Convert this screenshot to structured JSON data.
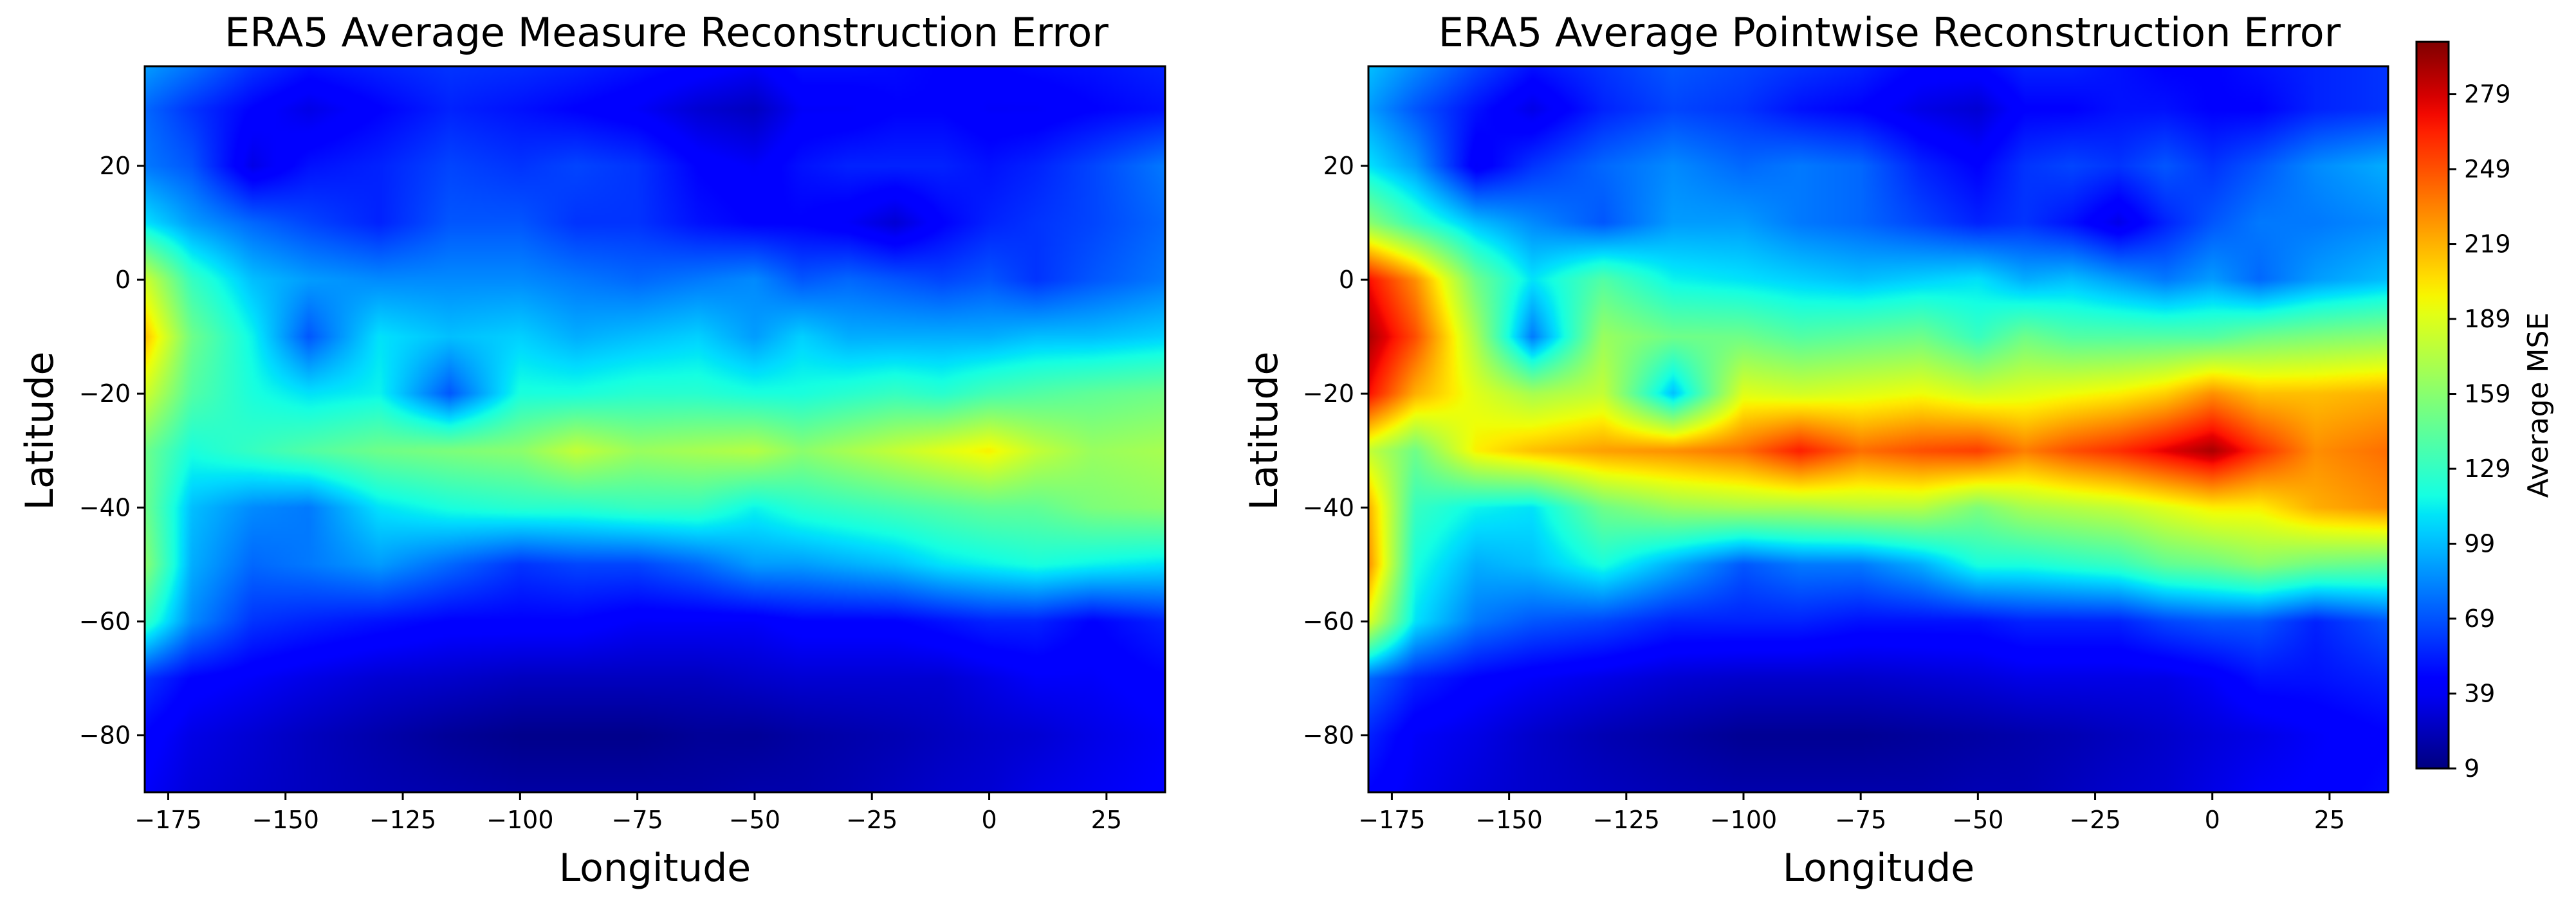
{
  "chart_data": [
    {
      "type": "heatmap",
      "title": "ERA5 Average Measure Reconstruction Error",
      "xlabel": "Longitude",
      "ylabel": "Latitude",
      "xlim": [
        -180,
        37.5
      ],
      "ylim": [
        -90,
        37.5
      ],
      "xticks": [
        -175,
        -150,
        -125,
        -100,
        -75,
        -50,
        -25,
        0,
        25
      ],
      "xtick_labels": [
        "−175",
        "−150",
        "−125",
        "−100",
        "−75",
        "−50",
        "−25",
        "0",
        "25"
      ],
      "yticks": [
        20,
        0,
        -20,
        -40,
        -60,
        -80
      ],
      "ytick_labels": [
        "20",
        "0",
        "−20",
        "−40",
        "−60",
        "−80"
      ],
      "colormap": "jet",
      "value_range": [
        9,
        300
      ],
      "x": [
        -180,
        -170,
        -157,
        -145,
        -130,
        -115,
        -100,
        -88,
        -75,
        -62,
        -50,
        -40,
        -30,
        -20,
        -10,
        0,
        10,
        22,
        37.5
      ],
      "y": [
        37.5,
        30,
        20,
        10,
        0,
        -10,
        -20,
        -30,
        -40,
        -50,
        -60,
        -70,
        -80,
        -90
      ],
      "values": [
        [
          90,
          78,
          60,
          50,
          55,
          60,
          58,
          55,
          50,
          45,
          40,
          50,
          50,
          48,
          45,
          45,
          48,
          50,
          55
        ],
        [
          75,
          60,
          45,
          35,
          45,
          55,
          50,
          45,
          40,
          30,
          25,
          40,
          40,
          45,
          45,
          40,
          40,
          45,
          50
        ],
        [
          80,
          70,
          35,
          50,
          55,
          65,
          60,
          65,
          60,
          45,
          40,
          50,
          55,
          55,
          55,
          50,
          55,
          65,
          80
        ],
        [
          110,
          90,
          75,
          65,
          55,
          70,
          70,
          60,
          60,
          50,
          45,
          45,
          40,
          30,
          45,
          55,
          60,
          65,
          75
        ],
        [
          185,
          130,
          100,
          90,
          85,
          85,
          85,
          80,
          75,
          80,
          85,
          70,
          75,
          70,
          65,
          70,
          60,
          70,
          80
        ],
        [
          215,
          150,
          115,
          70,
          110,
          100,
          105,
          95,
          100,
          105,
          90,
          105,
          95,
          95,
          95,
          95,
          100,
          100,
          105
        ],
        [
          185,
          140,
          120,
          110,
          115,
          70,
          120,
          120,
          125,
          125,
          120,
          120,
          125,
          130,
          125,
          135,
          140,
          145,
          150
        ],
        [
          150,
          120,
          130,
          140,
          150,
          155,
          160,
          180,
          165,
          170,
          175,
          160,
          170,
          180,
          190,
          200,
          180,
          165,
          170
        ],
        [
          150,
          100,
          85,
          80,
          110,
          120,
          125,
          125,
          130,
          130,
          115,
          125,
          130,
          135,
          140,
          145,
          145,
          155,
          160
        ],
        [
          160,
          95,
          75,
          80,
          90,
          75,
          60,
          65,
          65,
          75,
          90,
          90,
          95,
          100,
          110,
          115,
          120,
          115,
          110
        ],
        [
          130,
          85,
          60,
          55,
          50,
          45,
          45,
          45,
          40,
          40,
          40,
          45,
          45,
          45,
          50,
          55,
          55,
          45,
          55
        ],
        [
          60,
          45,
          40,
          35,
          30,
          28,
          25,
          25,
          25,
          25,
          28,
          30,
          30,
          30,
          30,
          35,
          40,
          40,
          45
        ],
        [
          45,
          35,
          30,
          25,
          20,
          15,
          12,
          12,
          12,
          15,
          15,
          18,
          20,
          22,
          25,
          28,
          30,
          35,
          40
        ],
        [
          40,
          32,
          28,
          25,
          22,
          20,
          18,
          18,
          18,
          18,
          20,
          20,
          22,
          25,
          28,
          30,
          35,
          38,
          42
        ]
      ]
    },
    {
      "type": "heatmap",
      "title": "ERA5 Average Pointwise Reconstruction Error",
      "xlabel": "Longitude",
      "ylabel": "Latitude",
      "xlim": [
        -180,
        37.5
      ],
      "ylim": [
        -90,
        37.5
      ],
      "xticks": [
        -175,
        -150,
        -125,
        -100,
        -75,
        -50,
        -25,
        0,
        25
      ],
      "xtick_labels": [
        "−175",
        "−150",
        "−125",
        "−100",
        "−75",
        "−50",
        "−25",
        "0",
        "25"
      ],
      "yticks": [
        20,
        0,
        -20,
        -40,
        -60,
        -80
      ],
      "ytick_labels": [
        "20",
        "0",
        "−20",
        "−40",
        "−60",
        "−80"
      ],
      "colormap": "jet",
      "value_range": [
        9,
        300
      ],
      "x": [
        -180,
        -170,
        -157,
        -145,
        -130,
        -115,
        -100,
        -88,
        -75,
        -62,
        -50,
        -40,
        -30,
        -20,
        -10,
        0,
        10,
        22,
        37.5
      ],
      "y": [
        37.5,
        30,
        20,
        10,
        0,
        -10,
        -20,
        -30,
        -40,
        -50,
        -60,
        -70,
        -80,
        -90
      ],
      "values": [
        [
          100,
          85,
          65,
          50,
          60,
          70,
          65,
          60,
          55,
          45,
          45,
          55,
          55,
          50,
          45,
          45,
          50,
          55,
          60
        ],
        [
          90,
          70,
          50,
          35,
          55,
          65,
          60,
          50,
          45,
          35,
          30,
          45,
          45,
          50,
          50,
          45,
          45,
          55,
          60
        ],
        [
          110,
          90,
          40,
          60,
          75,
          85,
          75,
          80,
          75,
          55,
          45,
          60,
          65,
          60,
          70,
          60,
          70,
          85,
          95
        ],
        [
          160,
          130,
          100,
          85,
          70,
          90,
          90,
          80,
          75,
          65,
          55,
          60,
          50,
          35,
          55,
          70,
          80,
          80,
          85
        ],
        [
          270,
          230,
          150,
          110,
          140,
          115,
          110,
          105,
          100,
          105,
          110,
          95,
          100,
          90,
          80,
          90,
          75,
          90,
          100
        ],
        [
          290,
          250,
          170,
          80,
          165,
          150,
          150,
          140,
          145,
          150,
          130,
          150,
          140,
          140,
          140,
          140,
          150,
          155,
          160
        ],
        [
          270,
          220,
          190,
          170,
          180,
          100,
          190,
          185,
          190,
          195,
          185,
          190,
          195,
          200,
          210,
          230,
          215,
          215,
          220
        ],
        [
          180,
          150,
          200,
          215,
          225,
          230,
          240,
          265,
          240,
          250,
          255,
          235,
          250,
          260,
          275,
          290,
          260,
          230,
          240
        ],
        [
          220,
          130,
          115,
          110,
          150,
          165,
          170,
          170,
          175,
          175,
          155,
          170,
          175,
          180,
          190,
          200,
          200,
          220,
          230
        ],
        [
          230,
          120,
          95,
          100,
          120,
          95,
          70,
          80,
          80,
          95,
          120,
          120,
          125,
          130,
          145,
          150,
          160,
          150,
          145
        ],
        [
          190,
          110,
          80,
          70,
          65,
          55,
          55,
          55,
          50,
          50,
          50,
          55,
          55,
          55,
          65,
          70,
          70,
          55,
          70
        ],
        [
          75,
          55,
          45,
          40,
          35,
          30,
          28,
          28,
          28,
          30,
          32,
          35,
          35,
          35,
          35,
          40,
          50,
          50,
          55
        ],
        [
          55,
          40,
          35,
          28,
          22,
          18,
          14,
          14,
          14,
          16,
          18,
          20,
          22,
          25,
          28,
          32,
          35,
          40,
          45
        ],
        [
          45,
          38,
          32,
          28,
          25,
          22,
          20,
          20,
          20,
          20,
          22,
          22,
          25,
          28,
          30,
          35,
          40,
          42,
          48
        ]
      ]
    }
  ],
  "colorbar": {
    "label": "Average MSE",
    "colormap": "jet",
    "range": [
      9,
      300
    ],
    "ticks": [
      9,
      39,
      69,
      99,
      129,
      159,
      189,
      219,
      249,
      279
    ],
    "tick_labels": [
      "9",
      "39",
      "69",
      "99",
      "129",
      "159",
      "189",
      "219",
      "249",
      "279"
    ]
  }
}
